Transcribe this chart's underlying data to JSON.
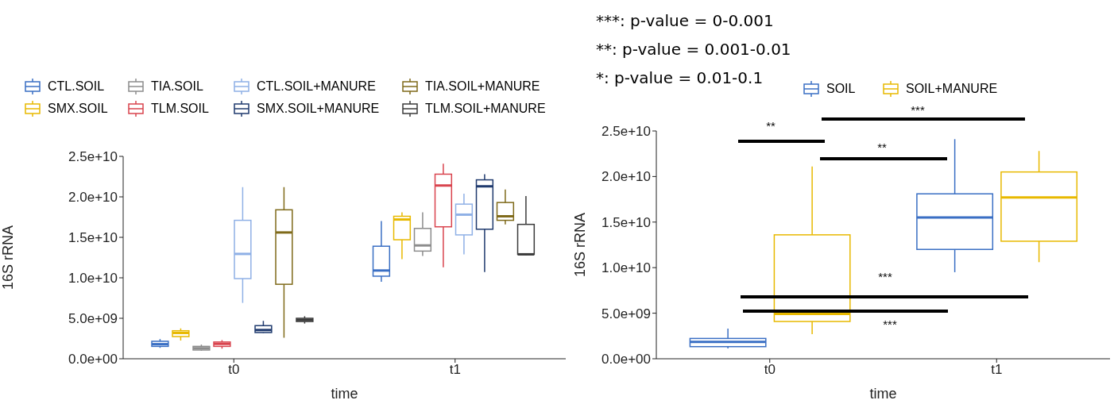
{
  "chart_data": [
    {
      "type": "box",
      "categories": [
        "t0",
        "t1"
      ],
      "xlabel": "time",
      "ylabel": "16S rRNA",
      "legend": "top",
      "ylim": [
        0,
        25000000000.0
      ],
      "yticks": [
        {
          "value": 0,
          "label": "0.0e+00"
        },
        {
          "value": 5000000000.0,
          "label": "5.0e+09"
        },
        {
          "value": 10000000000.0,
          "label": "1.0e+10"
        },
        {
          "value": 15000000000.0,
          "label": "1.5e+10"
        },
        {
          "value": 20000000000.0,
          "label": "2.0e+10"
        },
        {
          "value": 25000000000.0,
          "label": "2.5e+10"
        }
      ],
      "series": [
        {
          "name": "CTL.SOIL",
          "color": "#3a6fc4",
          "boxes": [
            {
              "low": 1350000000.0,
              "q1": 1530000000.0,
              "median": 1800000000.0,
              "q3": 2160000000.0,
              "high": 2430000000.0
            },
            {
              "low": 9500000000.0,
              "q1": 10200000000.0,
              "median": 10900000000.0,
              "q3": 13900000000.0,
              "high": 17000000000.0
            }
          ]
        },
        {
          "name": "SMX.SOIL",
          "color": "#e8b900",
          "boxes": [
            {
              "low": 2250000000.0,
              "q1": 2740000000.0,
              "median": 3190000000.0,
              "q3": 3460000000.0,
              "high": 3750000000.0
            },
            {
              "low": 12300000000.0,
              "q1": 14700000000.0,
              "median": 17200000000.0,
              "q3": 17600000000.0,
              "high": 18100000000.0
            }
          ]
        },
        {
          "name": "TIA.SOIL",
          "color": "#8c8c8c",
          "boxes": [
            {
              "low": 990000000.0,
              "q1": 1080000000.0,
              "median": 1300000000.0,
              "q3": 1530000000.0,
              "high": 1750000000.0
            },
            {
              "low": 12700000000.0,
              "q1": 13300000000.0,
              "median": 14000000000.0,
              "q3": 16100000000.0,
              "high": 18100000000.0
            }
          ]
        },
        {
          "name": "TLM.SOIL",
          "color": "#d9444e",
          "boxes": [
            {
              "low": 1250000000.0,
              "q1": 1530000000.0,
              "median": 1840000000.0,
              "q3": 2070000000.0,
              "high": 2300000000.0
            },
            {
              "low": 11300000000.0,
              "q1": 16300000000.0,
              "median": 21400000000.0,
              "q3": 22800000000.0,
              "high": 24100000000.0
            }
          ]
        },
        {
          "name": "CTL.SOIL+MANURE",
          "color": "#8fb0e6",
          "boxes": [
            {
              "low": 6900000000.0,
              "q1": 9900000000.0,
              "median": 12950000000.0,
              "q3": 17100000000.0,
              "high": 21200000000.0
            },
            {
              "low": 12900000000.0,
              "q1": 15300000000.0,
              "median": 17800000000.0,
              "q3": 19100000000.0,
              "high": 20400000000.0
            }
          ]
        },
        {
          "name": "SMX.SOIL+MANURE",
          "color": "#1f3a6e",
          "boxes": [
            {
              "low": 3190000000.0,
              "q1": 3240000000.0,
              "median": 3550000000.0,
              "q3": 4090000000.0,
              "high": 4680000000.0
            },
            {
              "low": 10700000000.0,
              "q1": 16000000000.0,
              "median": 21300000000.0,
              "q3": 22100000000.0,
              "high": 22800000000.0
            }
          ]
        },
        {
          "name": "TIA.SOIL+MANURE",
          "color": "#7f6a1a",
          "boxes": [
            {
              "low": 2600000000.0,
              "q1": 9200000000.0,
              "median": 15600000000.0,
              "q3": 18400000000.0,
              "high": 21200000000.0
            },
            {
              "low": 16600000000.0,
              "q1": 17100000000.0,
              "median": 17600000000.0,
              "q3": 19300000000.0,
              "high": 20900000000.0
            }
          ]
        },
        {
          "name": "TLM.SOIL+MANURE",
          "color": "#3a3a3a",
          "boxes": [
            {
              "low": 4350000000.0,
              "q1": 4600000000.0,
              "median": 4800000000.0,
              "q3": 5000000000.0,
              "high": 5250000000.0
            },
            {
              "low": 12800000000.0,
              "q1": 12900000000.0,
              "median": 12900000000.0,
              "q3": 16600000000.0,
              "high": 20100000000.0
            }
          ]
        }
      ]
    },
    {
      "type": "box",
      "categories": [
        "t0",
        "t1"
      ],
      "xlabel": "time",
      "ylabel": "16S rRNA",
      "legend": "top",
      "ylim": [
        0,
        25000000000.0
      ],
      "yticks": [
        {
          "value": 0,
          "label": "0.0e+00"
        },
        {
          "value": 5000000000.0,
          "label": "5.0e+09"
        },
        {
          "value": 10000000000.0,
          "label": "1.0e+10"
        },
        {
          "value": 15000000000.0,
          "label": "1.5e+10"
        },
        {
          "value": 20000000000.0,
          "label": "2.0e+10"
        },
        {
          "value": 25000000000.0,
          "label": "2.5e+10"
        }
      ],
      "annotations": [
        "***: p-value = 0-0.001",
        "**: p-value = 0.001-0.01",
        "*: p-value = 0.01-0.1",
        "***",
        "**",
        "**",
        "***",
        "***"
      ],
      "series": [
        {
          "name": "SOIL",
          "color": "#3a6fc4",
          "boxes": [
            {
              "low": 1140000000.0,
              "q1": 1330000000.0,
              "median": 1860000000.0,
              "q3": 2230000000.0,
              "high": 3300000000.0
            },
            {
              "low": 9500000000.0,
              "q1": 12000000000.0,
              "median": 15500000000.0,
              "q3": 18100000000.0,
              "high": 24100000000.0
            }
          ]
        },
        {
          "name": "SOIL+MANURE",
          "color": "#e8b900",
          "boxes": [
            {
              "low": 2700000000.0,
              "q1": 4090000000.0,
              "median": 4920000000.0,
              "q3": 13600000000.0,
              "high": 21100000000.0
            },
            {
              "low": 10600000000.0,
              "q1": 12900000000.0,
              "median": 17700000000.0,
              "q3": 20500000000.0,
              "high": 22800000000.0
            }
          ]
        }
      ]
    }
  ]
}
